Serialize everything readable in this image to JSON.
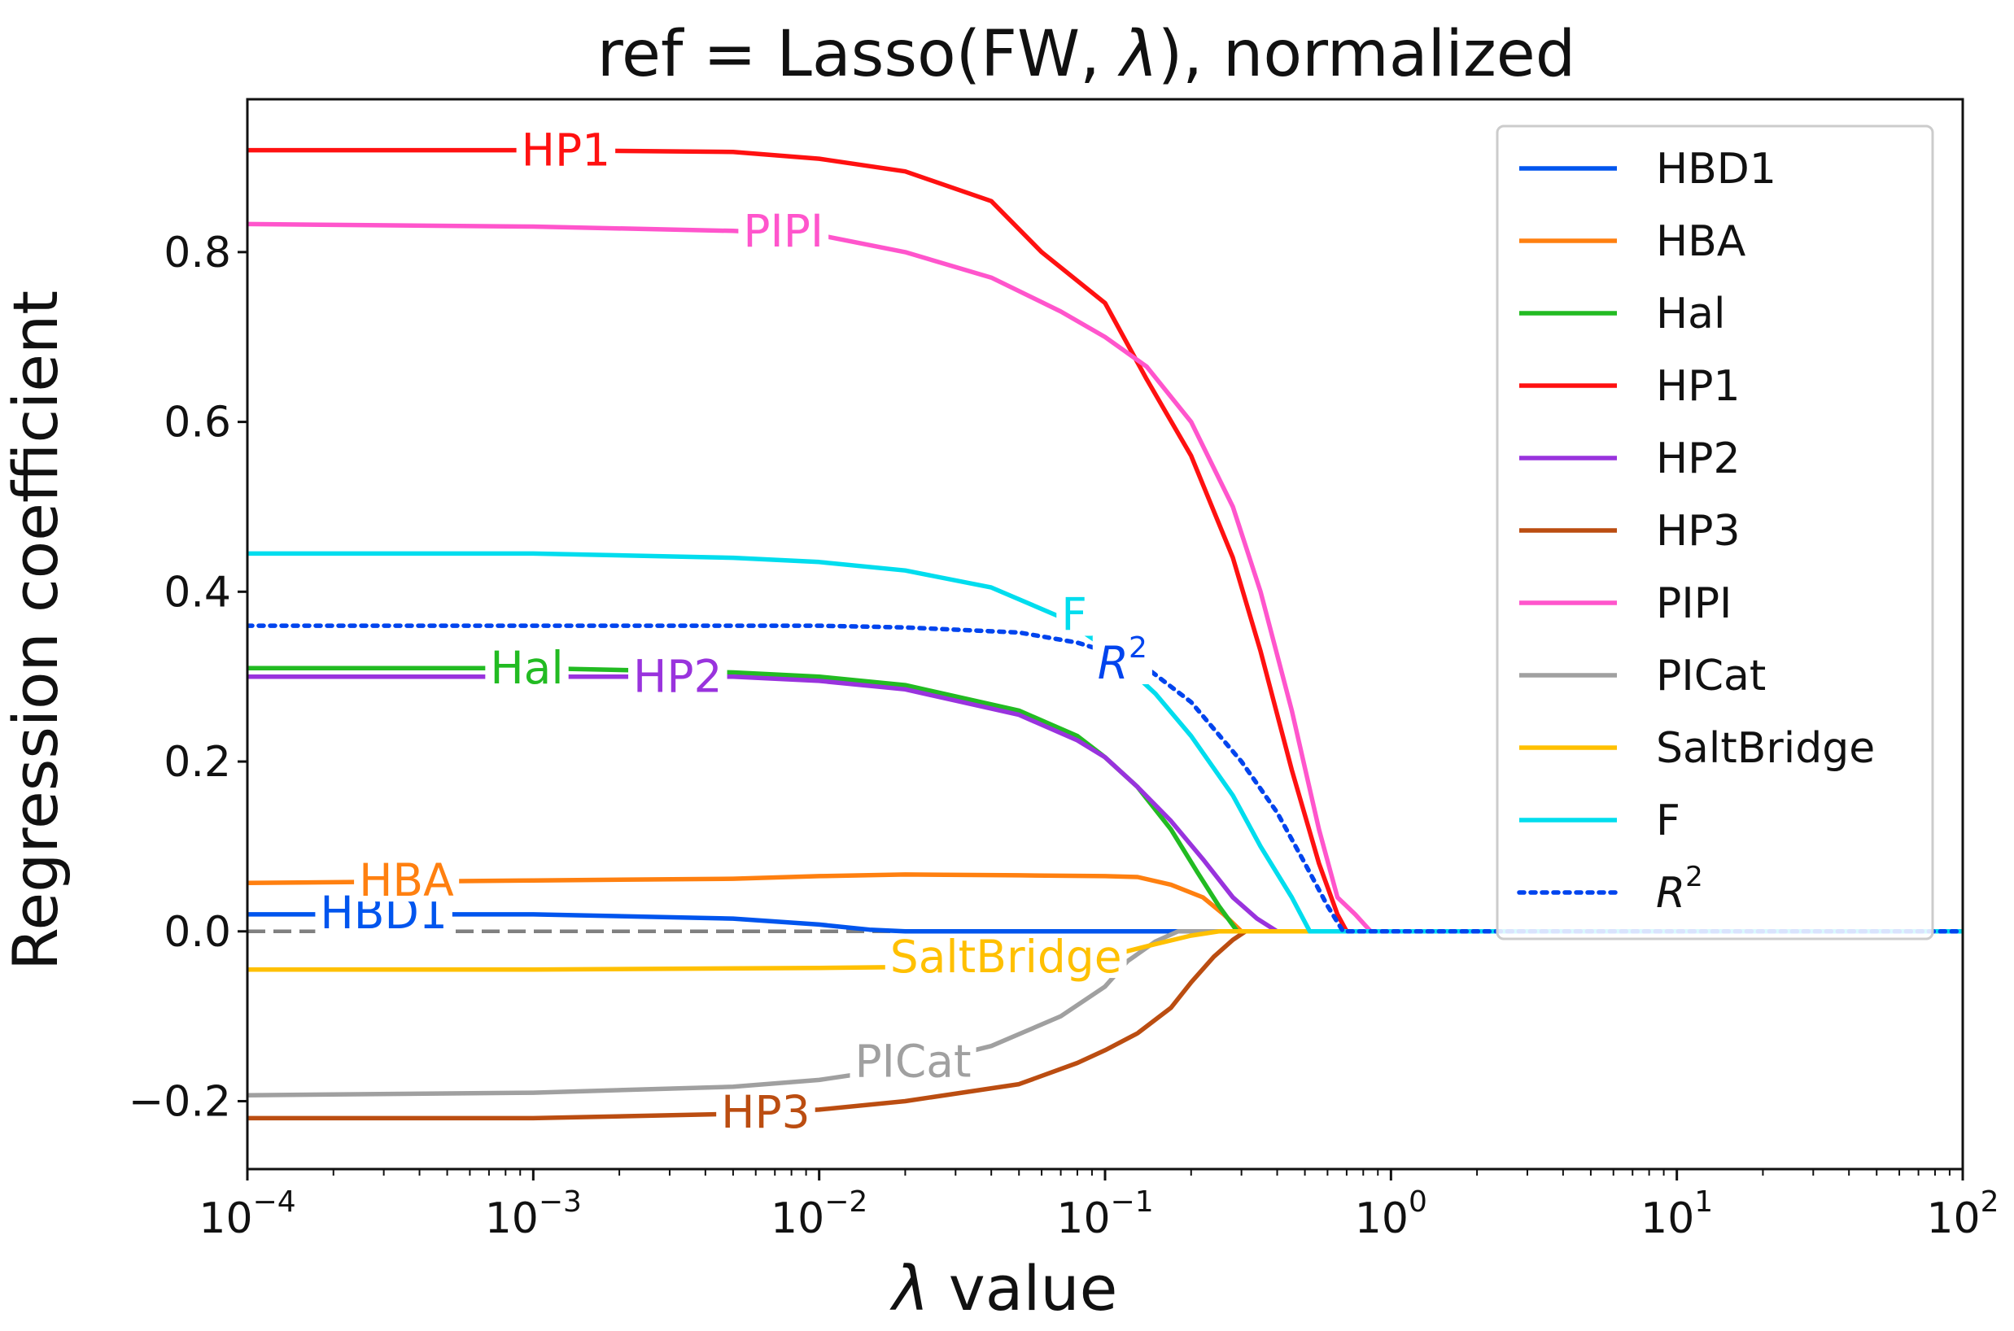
{
  "chart_data": {
    "type": "line",
    "title_parts": [
      "ref = Lasso(FW, ",
      "λ",
      "), normalized"
    ],
    "xlabel_symbol": "λ",
    "xlabel_rest": " value",
    "ylabel": "Regression coefficient",
    "x_scale": "log",
    "xlim": [
      0.0001,
      100
    ],
    "ylim": [
      -0.28,
      0.98
    ],
    "x_ticks": [
      {
        "value": 0.0001,
        "base": "10",
        "exp": "−4"
      },
      {
        "value": 0.001,
        "base": "10",
        "exp": "−3"
      },
      {
        "value": 0.01,
        "base": "10",
        "exp": "−2"
      },
      {
        "value": 0.1,
        "base": "10",
        "exp": "−1"
      },
      {
        "value": 1,
        "base": "10",
        "exp": "0"
      },
      {
        "value": 10,
        "base": "10",
        "exp": "1"
      },
      {
        "value": 100,
        "base": "10",
        "exp": "2"
      }
    ],
    "y_ticks": [
      {
        "value": -0.2,
        "label": "−0.2"
      },
      {
        "value": 0.0,
        "label": "0.0"
      },
      {
        "value": 0.2,
        "label": "0.2"
      },
      {
        "value": 0.4,
        "label": "0.4"
      },
      {
        "value": 0.6,
        "label": "0.6"
      },
      {
        "value": 0.8,
        "label": "0.8"
      }
    ],
    "zero_line": {
      "value": 0.0,
      "color": "#808080",
      "style": "dashed"
    },
    "series": [
      {
        "name": "HBD1",
        "color": "#0055ee",
        "style": "solid",
        "points": [
          [
            0.0001,
            0.02
          ],
          [
            0.001,
            0.02
          ],
          [
            0.005,
            0.015
          ],
          [
            0.01,
            0.008
          ],
          [
            0.015,
            0.002
          ],
          [
            0.02,
            0
          ],
          [
            100,
            0
          ]
        ],
        "label": {
          "text": "HBD1",
          "x": 0.0003,
          "y": 0.022
        }
      },
      {
        "name": "HBA",
        "color": "#ff8010",
        "style": "solid",
        "points": [
          [
            0.0001,
            0.057
          ],
          [
            0.001,
            0.06
          ],
          [
            0.005,
            0.062
          ],
          [
            0.01,
            0.065
          ],
          [
            0.02,
            0.067
          ],
          [
            0.05,
            0.066
          ],
          [
            0.1,
            0.065
          ],
          [
            0.13,
            0.064
          ],
          [
            0.17,
            0.055
          ],
          [
            0.22,
            0.04
          ],
          [
            0.26,
            0.02
          ],
          [
            0.3,
            0
          ],
          [
            100,
            0
          ]
        ],
        "label": {
          "text": "HBA",
          "x": 0.00036,
          "y": 0.06
        }
      },
      {
        "name": "Hal",
        "color": "#22bb22",
        "style": "solid",
        "points": [
          [
            0.0001,
            0.31
          ],
          [
            0.001,
            0.31
          ],
          [
            0.005,
            0.305
          ],
          [
            0.01,
            0.3
          ],
          [
            0.02,
            0.29
          ],
          [
            0.05,
            0.26
          ],
          [
            0.08,
            0.23
          ],
          [
            0.1,
            0.205
          ],
          [
            0.13,
            0.17
          ],
          [
            0.17,
            0.12
          ],
          [
            0.21,
            0.07
          ],
          [
            0.25,
            0.03
          ],
          [
            0.29,
            0
          ],
          [
            100,
            0
          ]
        ],
        "label": {
          "text": "Hal",
          "x": 0.00095,
          "y": 0.31
        }
      },
      {
        "name": "HP1",
        "color": "#ff1111",
        "style": "solid",
        "points": [
          [
            0.0001,
            0.92
          ],
          [
            0.001,
            0.92
          ],
          [
            0.005,
            0.918
          ],
          [
            0.01,
            0.91
          ],
          [
            0.02,
            0.895
          ],
          [
            0.04,
            0.86
          ],
          [
            0.06,
            0.8
          ],
          [
            0.1,
            0.74
          ],
          [
            0.14,
            0.65
          ],
          [
            0.2,
            0.56
          ],
          [
            0.28,
            0.44
          ],
          [
            0.35,
            0.33
          ],
          [
            0.45,
            0.19
          ],
          [
            0.56,
            0.08
          ],
          [
            0.65,
            0.02
          ],
          [
            0.7,
            0
          ],
          [
            100,
            0
          ]
        ],
        "label": {
          "text": "HP1",
          "x": 0.0013,
          "y": 0.92
        }
      },
      {
        "name": "HP2",
        "color": "#9933dd",
        "style": "solid",
        "points": [
          [
            0.0001,
            0.3
          ],
          [
            0.001,
            0.3
          ],
          [
            0.005,
            0.3
          ],
          [
            0.01,
            0.295
          ],
          [
            0.02,
            0.285
          ],
          [
            0.05,
            0.255
          ],
          [
            0.08,
            0.225
          ],
          [
            0.1,
            0.205
          ],
          [
            0.13,
            0.17
          ],
          [
            0.17,
            0.13
          ],
          [
            0.22,
            0.085
          ],
          [
            0.28,
            0.04
          ],
          [
            0.34,
            0.015
          ],
          [
            0.4,
            0
          ],
          [
            100,
            0
          ]
        ],
        "label": {
          "text": "HP2",
          "x": 0.0032,
          "y": 0.3
        }
      },
      {
        "name": "HP3",
        "color": "#bb4d11",
        "style": "solid",
        "points": [
          [
            0.0001,
            -0.22
          ],
          [
            0.001,
            -0.22
          ],
          [
            0.005,
            -0.215
          ],
          [
            0.01,
            -0.21
          ],
          [
            0.02,
            -0.2
          ],
          [
            0.05,
            -0.18
          ],
          [
            0.08,
            -0.155
          ],
          [
            0.1,
            -0.14
          ],
          [
            0.13,
            -0.12
          ],
          [
            0.17,
            -0.09
          ],
          [
            0.2,
            -0.06
          ],
          [
            0.24,
            -0.03
          ],
          [
            0.28,
            -0.01
          ],
          [
            0.31,
            0
          ],
          [
            100,
            0
          ]
        ],
        "label": {
          "text": "HP3",
          "x": 0.0065,
          "y": -0.213
        }
      },
      {
        "name": "PIPI",
        "color": "#ff55cc",
        "style": "solid",
        "points": [
          [
            0.0001,
            0.833
          ],
          [
            0.001,
            0.83
          ],
          [
            0.005,
            0.825
          ],
          [
            0.01,
            0.82
          ],
          [
            0.02,
            0.8
          ],
          [
            0.04,
            0.77
          ],
          [
            0.07,
            0.73
          ],
          [
            0.1,
            0.7
          ],
          [
            0.14,
            0.665
          ],
          [
            0.2,
            0.6
          ],
          [
            0.28,
            0.5
          ],
          [
            0.35,
            0.4
          ],
          [
            0.45,
            0.26
          ],
          [
            0.56,
            0.12
          ],
          [
            0.65,
            0.04
          ],
          [
            0.75,
            0.02
          ],
          [
            0.85,
            0
          ],
          [
            100,
            0
          ]
        ],
        "label": {
          "text": "PIPI",
          "x": 0.0075,
          "y": 0.825
        }
      },
      {
        "name": "PICat",
        "color": "#a0a0a0",
        "style": "solid",
        "points": [
          [
            0.0001,
            -0.193
          ],
          [
            0.001,
            -0.19
          ],
          [
            0.005,
            -0.183
          ],
          [
            0.01,
            -0.175
          ],
          [
            0.02,
            -0.16
          ],
          [
            0.04,
            -0.135
          ],
          [
            0.07,
            -0.1
          ],
          [
            0.1,
            -0.065
          ],
          [
            0.12,
            -0.035
          ],
          [
            0.15,
            -0.012
          ],
          [
            0.18,
            0
          ],
          [
            100,
            0
          ]
        ],
        "label": {
          "text": "PICat",
          "x": 0.0213,
          "y": -0.153
        }
      },
      {
        "name": "SaltBridge",
        "color": "#ffc000",
        "style": "solid",
        "points": [
          [
            0.0001,
            -0.045
          ],
          [
            0.001,
            -0.045
          ],
          [
            0.01,
            -0.043
          ],
          [
            0.02,
            -0.042
          ],
          [
            0.05,
            -0.038
          ],
          [
            0.1,
            -0.03
          ],
          [
            0.15,
            -0.015
          ],
          [
            0.2,
            -0.005
          ],
          [
            0.25,
            0
          ],
          [
            100,
            0
          ]
        ],
        "label": {
          "text": "SaltBridge",
          "x": 0.045,
          "y": -0.03
        }
      },
      {
        "name": "F",
        "color": "#00ddee",
        "style": "solid",
        "points": [
          [
            0.0001,
            0.445
          ],
          [
            0.001,
            0.445
          ],
          [
            0.005,
            0.44
          ],
          [
            0.01,
            0.435
          ],
          [
            0.02,
            0.425
          ],
          [
            0.04,
            0.405
          ],
          [
            0.07,
            0.37
          ],
          [
            0.1,
            0.335
          ],
          [
            0.15,
            0.28
          ],
          [
            0.2,
            0.23
          ],
          [
            0.28,
            0.16
          ],
          [
            0.35,
            0.1
          ],
          [
            0.45,
            0.04
          ],
          [
            0.52,
            0
          ],
          [
            100,
            0
          ]
        ],
        "label": {
          "text": "F",
          "x": 0.078,
          "y": 0.373
        }
      },
      {
        "name": "R2",
        "color": "#0044ee",
        "style": "dotted",
        "points": [
          [
            0.0001,
            0.36
          ],
          [
            0.001,
            0.36
          ],
          [
            0.005,
            0.36
          ],
          [
            0.01,
            0.36
          ],
          [
            0.02,
            0.358
          ],
          [
            0.05,
            0.352
          ],
          [
            0.08,
            0.34
          ],
          [
            0.1,
            0.33
          ],
          [
            0.14,
            0.31
          ],
          [
            0.2,
            0.27
          ],
          [
            0.3,
            0.2
          ],
          [
            0.4,
            0.14
          ],
          [
            0.5,
            0.08
          ],
          [
            0.6,
            0.03
          ],
          [
            0.68,
            0
          ],
          [
            100,
            0
          ]
        ],
        "label": {
          "text": "R",
          "sup": "2",
          "italic": true,
          "x": 0.115,
          "y": 0.316
        }
      }
    ],
    "legend": {
      "position": "top-right",
      "entries": [
        {
          "name": "HBD1",
          "text": "HBD1"
        },
        {
          "name": "HBA",
          "text": "HBA"
        },
        {
          "name": "Hal",
          "text": "Hal"
        },
        {
          "name": "HP1",
          "text": "HP1"
        },
        {
          "name": "HP2",
          "text": "HP2"
        },
        {
          "name": "HP3",
          "text": "HP3"
        },
        {
          "name": "PIPI",
          "text": "PIPI"
        },
        {
          "name": "PICat",
          "text": "PICat"
        },
        {
          "name": "SaltBridge",
          "text": "SaltBridge"
        },
        {
          "name": "F",
          "text": "F"
        },
        {
          "name": "R2",
          "text": "R",
          "sup": "2",
          "italic": true
        }
      ]
    }
  }
}
